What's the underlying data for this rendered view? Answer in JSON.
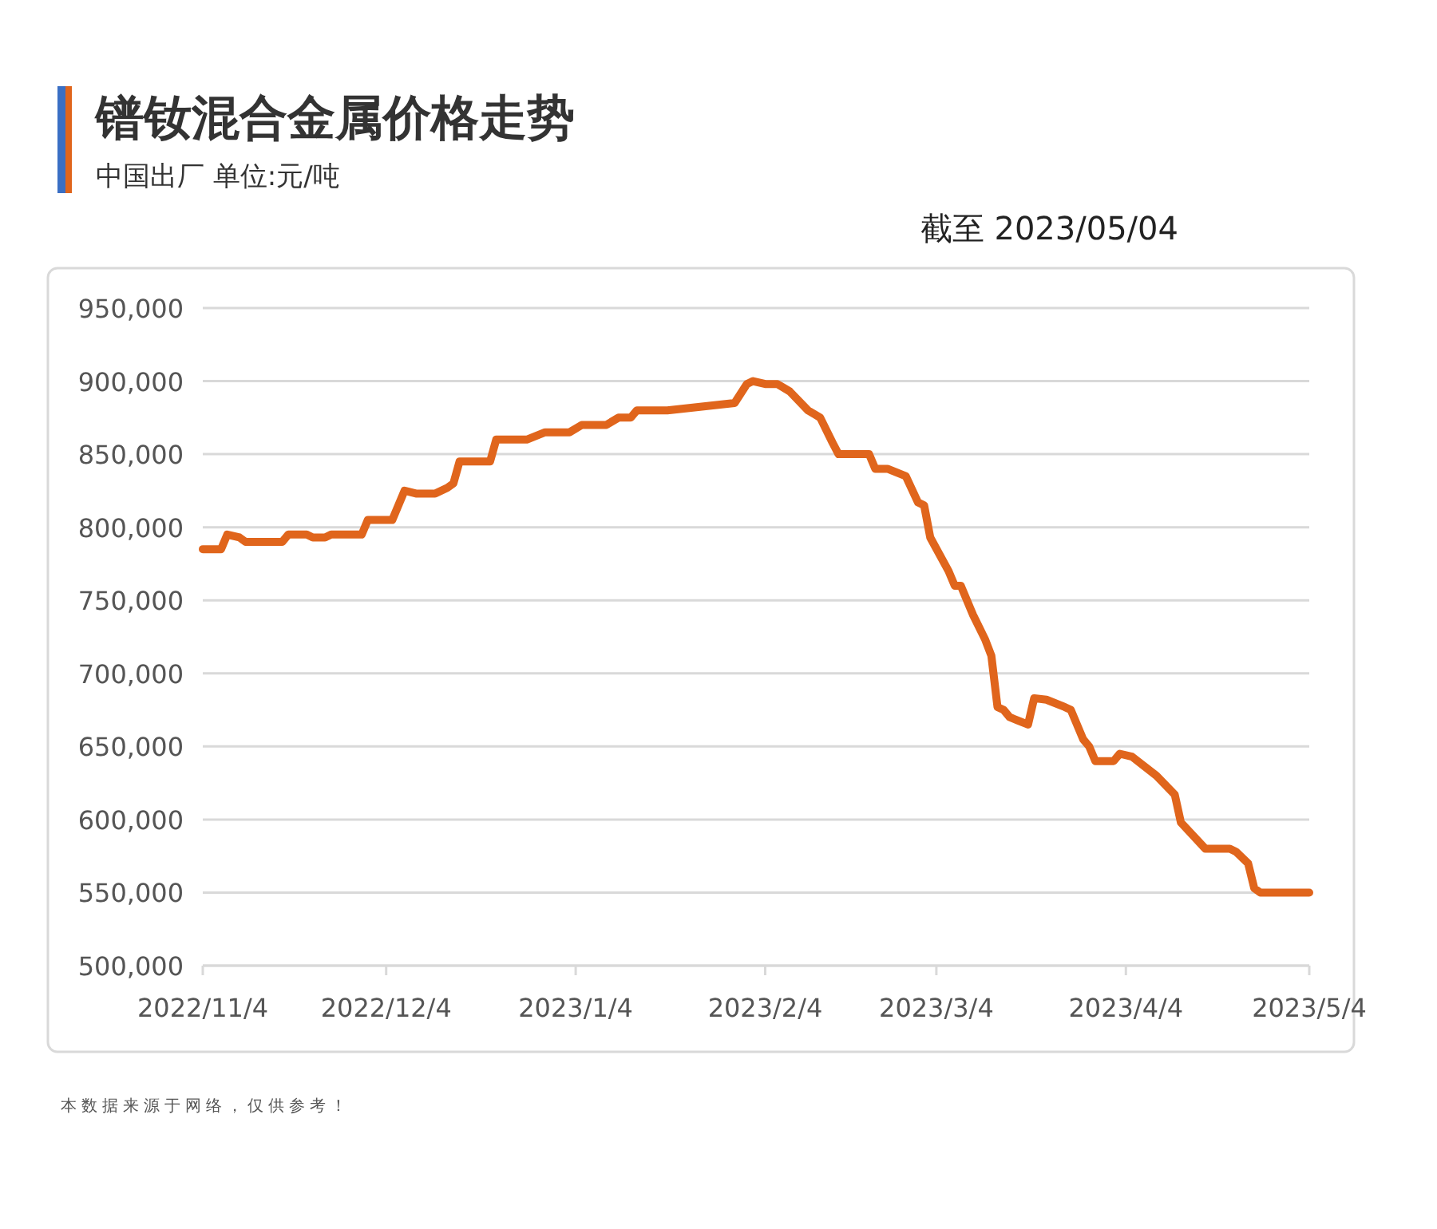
{
  "chart_data": {
    "type": "line",
    "title": "镨钕混合金属价格走势",
    "subtitle": "中国出厂 单位:元/吨",
    "annotations": [
      "截至 2023/05/04",
      "本数据来源于网络，仅供参考！"
    ],
    "x": [
      "2022-11-04",
      "2022-11-07",
      "2022-11-08",
      "2022-11-10",
      "2022-11-11",
      "2022-11-17",
      "2022-11-18",
      "2022-11-21",
      "2022-11-22",
      "2022-11-24",
      "2022-11-25",
      "2022-11-30",
      "2022-12-01",
      "2022-12-05",
      "2022-12-07",
      "2022-12-09",
      "2022-12-12",
      "2022-12-14",
      "2022-12-15",
      "2022-12-16",
      "2022-12-21",
      "2022-12-22",
      "2022-12-27",
      "2022-12-30",
      "2023-01-03",
      "2023-01-05",
      "2023-01-09",
      "2023-01-11",
      "2023-01-13",
      "2023-01-14",
      "2023-01-19",
      "2023-01-30",
      "2023-02-01",
      "2023-02-02",
      "2023-02-04",
      "2023-02-06",
      "2023-02-08",
      "2023-02-11",
      "2023-02-13",
      "2023-02-15",
      "2023-02-16",
      "2023-02-21",
      "2023-02-22",
      "2023-02-24",
      "2023-02-27",
      "2023-03-01",
      "2023-03-02",
      "2023-03-03",
      "2023-03-06",
      "2023-03-07",
      "2023-03-08",
      "2023-03-10",
      "2023-03-12",
      "2023-03-13",
      "2023-03-14",
      "2023-03-15",
      "2023-03-16",
      "2023-03-19",
      "2023-03-20",
      "2023-03-22",
      "2023-03-25",
      "2023-03-26",
      "2023-03-28",
      "2023-03-29",
      "2023-03-30",
      "2023-04-02",
      "2023-04-03",
      "2023-04-05",
      "2023-04-09",
      "2023-04-12",
      "2023-04-13",
      "2023-04-17",
      "2023-04-21",
      "2023-04-22",
      "2023-04-24",
      "2023-04-25",
      "2023-04-26",
      "2023-05-04"
    ],
    "series": [
      {
        "color": "#e0651c",
        "values": [
          785000,
          785000,
          795000,
          793000,
          790000,
          790000,
          795000,
          795000,
          793000,
          793000,
          795000,
          795000,
          805000,
          805000,
          825000,
          823000,
          823000,
          827000,
          830000,
          845000,
          845000,
          860000,
          860000,
          865000,
          865000,
          870000,
          870000,
          875000,
          875000,
          880000,
          880000,
          885000,
          898000,
          900000,
          898000,
          898000,
          893000,
          880000,
          875000,
          858000,
          850000,
          850000,
          840000,
          840000,
          835000,
          817000,
          815000,
          793000,
          770000,
          760000,
          760000,
          740000,
          723000,
          712000,
          677000,
          675000,
          670000,
          665000,
          683000,
          682000,
          677000,
          675000,
          655000,
          650000,
          640000,
          640000,
          645000,
          643000,
          630000,
          617000,
          598000,
          580000,
          580000,
          578000,
          570000,
          553000,
          550000,
          550000
        ]
      }
    ],
    "ylim": [
      500000,
      950000
    ],
    "yticks": [
      {
        "value": 500000,
        "label": "500,000"
      },
      {
        "value": 550000,
        "label": "550,000"
      },
      {
        "value": 600000,
        "label": "600,000"
      },
      {
        "value": 650000,
        "label": "650,000"
      },
      {
        "value": 700000,
        "label": "700,000"
      },
      {
        "value": 750000,
        "label": "750,000"
      },
      {
        "value": 800000,
        "label": "800,000"
      },
      {
        "value": 850000,
        "label": "850,000"
      },
      {
        "value": 900000,
        "label": "900,000"
      },
      {
        "value": 950000,
        "label": "950,000"
      }
    ],
    "xlim": [
      "2022-11-04",
      "2023-05-04"
    ],
    "xticks": [
      {
        "value": "2022-11-04",
        "label": "2022/11/4"
      },
      {
        "value": "2022-12-04",
        "label": "2022/12/4"
      },
      {
        "value": "2023-01-04",
        "label": "2023/1/4"
      },
      {
        "value": "2023-02-04",
        "label": "2023/2/4"
      },
      {
        "value": "2023-03-04",
        "label": "2023/3/4"
      },
      {
        "value": "2023-04-04",
        "label": "2023/4/4"
      },
      {
        "value": "2023-05-04",
        "label": "2023/5/4"
      }
    ],
    "grid": "y",
    "marker": "none",
    "line_style": "solid"
  }
}
